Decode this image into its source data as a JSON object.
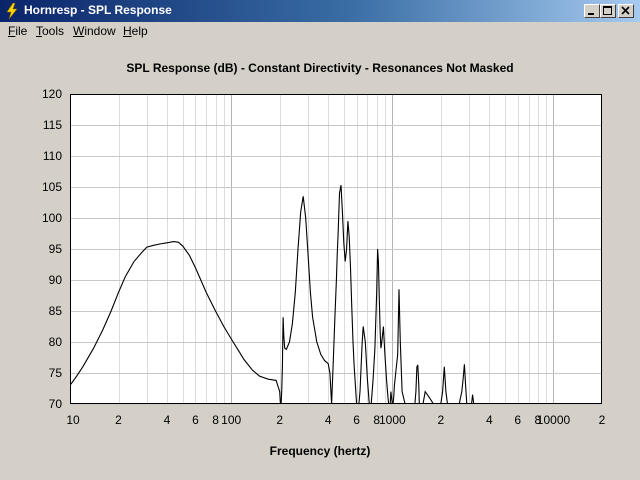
{
  "window": {
    "title": "Hornresp - SPL Response"
  },
  "menu": {
    "items": [
      {
        "label": "File",
        "accel": "F",
        "rest": "ile"
      },
      {
        "label": "Tools",
        "accel": "T",
        "rest": "ools"
      },
      {
        "label": "Window",
        "accel": "W",
        "rest": "indow"
      },
      {
        "label": "Help",
        "accel": "H",
        "rest": "elp"
      }
    ]
  },
  "colors": {
    "title_bar_start": "#0a246a",
    "title_bar_end": "#a6caf0",
    "plot_background": "#ffffff",
    "grid": "#c8c8c8",
    "curve": "#000000"
  },
  "chart_data": {
    "type": "line",
    "title": "SPL Response (dB) - Constant Directivity - Resonances Not Masked",
    "xlabel": "Frequency (hertz)",
    "ylabel": "",
    "x_scale": "log",
    "xlim": [
      10,
      20000
    ],
    "ylim": [
      70,
      120
    ],
    "grid": true,
    "x_tick_labels": [
      {
        "v": 10,
        "t": "10"
      },
      {
        "v": 20,
        "t": "2"
      },
      {
        "v": 40,
        "t": "4"
      },
      {
        "v": 60,
        "t": "6"
      },
      {
        "v": 80,
        "t": "8"
      },
      {
        "v": 100,
        "t": "100"
      },
      {
        "v": 200,
        "t": "2"
      },
      {
        "v": 400,
        "t": "4"
      },
      {
        "v": 600,
        "t": "6"
      },
      {
        "v": 800,
        "t": "8"
      },
      {
        "v": 1000,
        "t": "1000"
      },
      {
        "v": 2000,
        "t": "2"
      },
      {
        "v": 4000,
        "t": "4"
      },
      {
        "v": 6000,
        "t": "6"
      },
      {
        "v": 8000,
        "t": "8"
      },
      {
        "v": 10000,
        "t": "10000"
      },
      {
        "v": 20000,
        "t": "2"
      }
    ],
    "y_tick_labels": [
      "70",
      "75",
      "80",
      "85",
      "90",
      "95",
      "100",
      "105",
      "110",
      "115",
      "120"
    ],
    "y_ticks": [
      70,
      75,
      80,
      85,
      90,
      95,
      100,
      105,
      110,
      115,
      120
    ],
    "series": [
      {
        "x": [
          10,
          11,
          12,
          14,
          16,
          18,
          20,
          22,
          25,
          28,
          30,
          33,
          36,
          40,
          44,
          47,
          50,
          55,
          60,
          70,
          80,
          90,
          100,
          110,
          120,
          135,
          150,
          170,
          190,
          200,
          202,
          204,
          206,
          208,
          210,
          212,
          215,
          220,
          230,
          240,
          250,
          260,
          270,
          280,
          290,
          300,
          310,
          320,
          340,
          360,
          380,
          400,
          410,
          420,
          430,
          440,
          450,
          455,
          460,
          470,
          480,
          490,
          500,
          510,
          520,
          530,
          540,
          550,
          560,
          570,
          580,
          590,
          600,
          610,
          620,
          630,
          640,
          650,
          660,
          680,
          700,
          720,
          740,
          760,
          780,
          800,
          810,
          820,
          830,
          840,
          850,
          860,
          880,
          900,
          920,
          940,
          950,
          960,
          970,
          980,
          990,
          1000,
          1010,
          1020,
          1030,
          1050,
          1080,
          1100,
          1120,
          1150,
          1200,
          1250,
          1300,
          1350,
          1380,
          1400,
          1420,
          1440,
          1460,
          1470,
          1480,
          1500,
          1520,
          1550,
          1600,
          1700,
          1800,
          1900,
          2000,
          2050,
          2100,
          2150,
          2200,
          2300,
          2400,
          2500,
          2600,
          2700,
          2750,
          2800,
          2850,
          2900,
          3000,
          3100,
          3150,
          3200,
          3250,
          3300
        ],
        "y": [
          73,
          74.5,
          76,
          79,
          82,
          85,
          88,
          90.5,
          93,
          94.5,
          95.3,
          95.6,
          95.8,
          96,
          96.2,
          96.1,
          95.5,
          94,
          92,
          88,
          85,
          82.5,
          80.5,
          78.8,
          77.2,
          75.5,
          74.5,
          74,
          73.8,
          72,
          69,
          70,
          72,
          76,
          84,
          81,
          79,
          78.8,
          80,
          83,
          88,
          95,
          101,
          103.5,
          100,
          94,
          88,
          84,
          80,
          78,
          77,
          76.5,
          75,
          70,
          77,
          84,
          90,
          94,
          97,
          104,
          105.3,
          101,
          96,
          93,
          95,
          99.5,
          97,
          92,
          86,
          80,
          76,
          73,
          70,
          69,
          70,
          72,
          76,
          80,
          82.5,
          80,
          74,
          69,
          70,
          74,
          79,
          88,
          95,
          93,
          87,
          82,
          79,
          80,
          82.5,
          78,
          74,
          71,
          70,
          69,
          70,
          72,
          71,
          70,
          70,
          71,
          73,
          75,
          78,
          88.5,
          80,
          72,
          70,
          70,
          69,
          69,
          70,
          72,
          76,
          76.3,
          73,
          70,
          69,
          70,
          69,
          70,
          72,
          71,
          69,
          69,
          70,
          72,
          76,
          72,
          70,
          70,
          69,
          70,
          70,
          72,
          74,
          76.4,
          73,
          70,
          69,
          70,
          71.5,
          70,
          69,
          69
        ]
      }
    ]
  }
}
